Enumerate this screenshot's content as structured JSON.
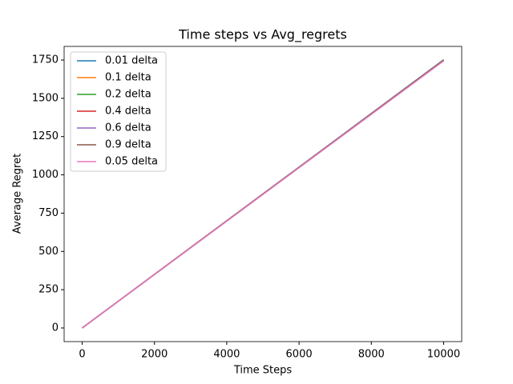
{
  "chart_data": {
    "type": "line",
    "title": "Time steps vs Avg_regrets",
    "x_label": "Time Steps",
    "y_label": "Average Regret",
    "x": [
      0,
      10000
    ],
    "series": [
      {
        "name": "0.01 delta",
        "color": "#1f77b4",
        "values": [
          0,
          1752
        ]
      },
      {
        "name": "0.1 delta",
        "color": "#ff7f0e",
        "values": [
          0,
          1750
        ]
      },
      {
        "name": "0.2 delta",
        "color": "#2ca02c",
        "values": [
          0,
          1749
        ]
      },
      {
        "name": "0.4 delta",
        "color": "#d62728",
        "values": [
          0,
          1748
        ]
      },
      {
        "name": "0.6 delta",
        "color": "#9467bd",
        "values": [
          0,
          1747
        ]
      },
      {
        "name": "0.9 delta",
        "color": "#8c564b",
        "values": [
          0,
          1746
        ]
      },
      {
        "name": "0.05 delta",
        "color": "#e377c2",
        "values": [
          0,
          1744
        ]
      }
    ],
    "xlim": [
      -500,
      10500
    ],
    "ylim": [
      -89,
      1839
    ],
    "xticks": [
      0,
      2000,
      4000,
      6000,
      8000,
      10000
    ],
    "yticks": [
      0,
      250,
      500,
      750,
      1000,
      1250,
      1500,
      1750
    ],
    "grid": false,
    "legend": "upper-left"
  }
}
